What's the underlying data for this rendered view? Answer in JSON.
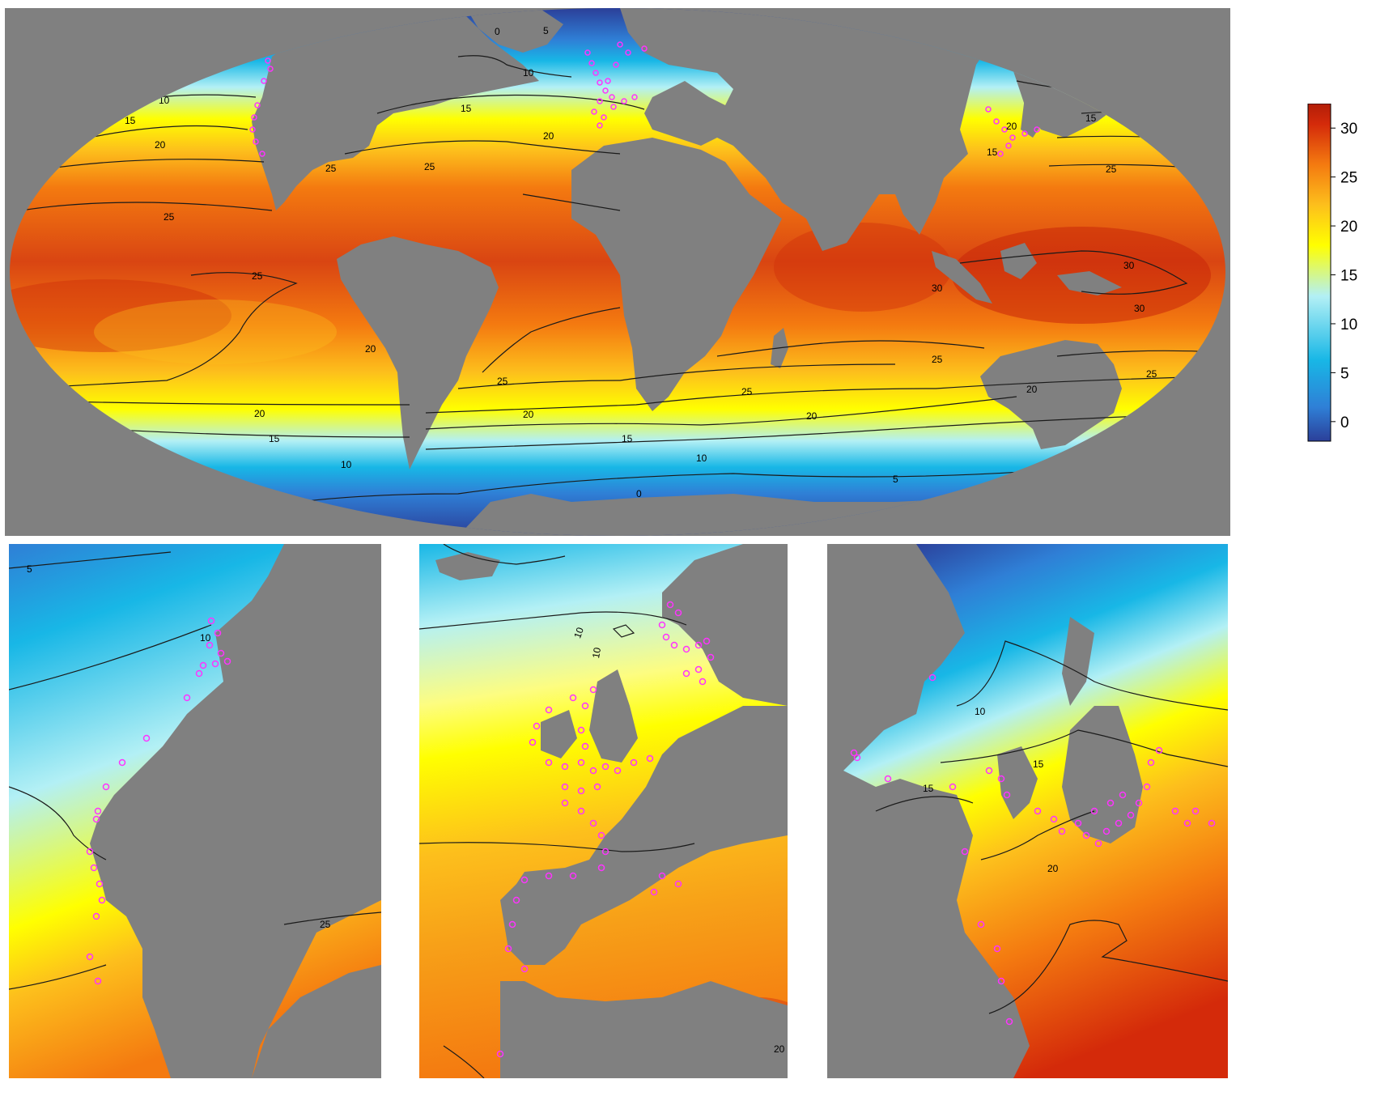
{
  "map": {
    "colors": {
      "land": "#808080",
      "contour": "#1a1a1a",
      "point": "#ff33ff",
      "ramp": [
        "#2b3f99",
        "#2f7fd6",
        "#18b7e6",
        "#b3f0f5",
        "#ffff00",
        "#fdbf1c",
        "#f47a10",
        "#d42a0a",
        "#b21e08"
      ]
    },
    "contour_labels": {
      "world": [
        "5",
        "5",
        "5",
        "0",
        "10",
        "10",
        "10",
        "15",
        "15",
        "15",
        "20",
        "20",
        "25",
        "25",
        "25",
        "25",
        "30",
        "30",
        "30",
        "25",
        "25",
        "25",
        "20",
        "20",
        "20",
        "20",
        "25",
        "20",
        "15",
        "15",
        "15",
        "10",
        "10",
        "5",
        "0",
        "20",
        "15",
        "25",
        "20"
      ],
      "na": [
        "5",
        "10",
        "25"
      ],
      "eu": [
        "10",
        "10",
        "20"
      ],
      "as": [
        "10",
        "15",
        "15",
        "20"
      ]
    }
  },
  "colorbar": {
    "min": -2,
    "max": 32.5,
    "ticks": [
      "30",
      "25",
      "20",
      "15",
      "10",
      "5",
      "0"
    ],
    "tick_values": [
      30,
      25,
      20,
      15,
      10,
      5,
      0
    ]
  }
}
